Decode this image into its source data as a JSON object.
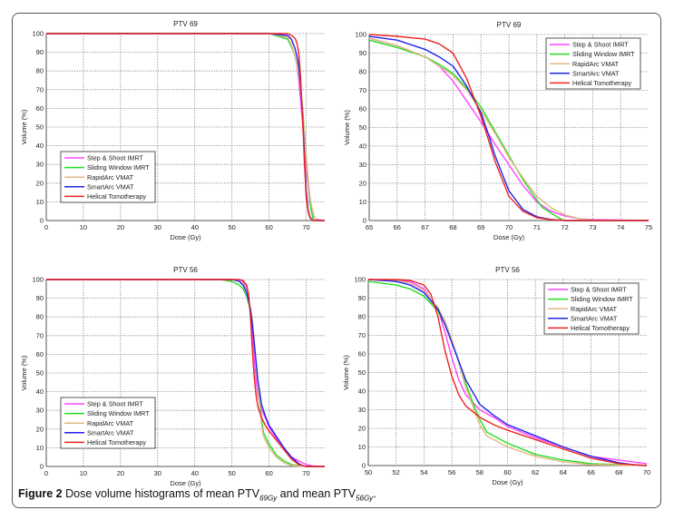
{
  "caption": {
    "label": "Figure 2",
    "text_before": " Dose volume histograms of mean PTV",
    "sub1": "69Gy",
    "text_mid": " and mean PTV",
    "sub2": "56Gy",
    "text_end": "."
  },
  "series_colors": {
    "Step & Shoot IMRT": "#ff44ff",
    "Sliding Window IMRT": "#22dd22",
    "RapidArc VMAT": "#e2b884",
    "SmartArc VMAT": "#2222ee",
    "Helical Tomotherapy": "#ee2222"
  },
  "chart_data": [
    {
      "type": "line",
      "title": "PTV 69",
      "xlabel": "Dose (Gy)",
      "ylabel": "Volume (%)",
      "xlim": [
        0,
        75
      ],
      "ylim": [
        0,
        100
      ],
      "xticks": [
        0,
        10,
        20,
        30,
        40,
        50,
        60,
        70
      ],
      "yticks": [
        0,
        10,
        20,
        30,
        40,
        50,
        60,
        70,
        80,
        90,
        100
      ],
      "grid": true,
      "legend": "bottom-left",
      "series": [
        {
          "name": "Step & Shoot IMRT",
          "x": [
            0,
            60,
            65,
            66,
            67,
            67.5,
            68,
            68.5,
            69,
            69.5,
            70,
            70.5,
            71,
            71.5,
            72,
            72.5,
            73,
            75
          ],
          "y": [
            100,
            100,
            98,
            94,
            88,
            83,
            75,
            64,
            53,
            41,
            30,
            19,
            10,
            5,
            2.5,
            1,
            0.5,
            0
          ]
        },
        {
          "name": "Sliding Window IMRT",
          "x": [
            0,
            60,
            65,
            66,
            67,
            67.5,
            68,
            68.5,
            69,
            69.5,
            70,
            70.5,
            71,
            71.2,
            71.5,
            71.9,
            72,
            75
          ],
          "y": [
            100,
            100,
            97,
            93,
            88,
            84,
            79,
            71,
            61,
            48,
            35,
            22,
            11,
            7,
            4,
            0.5,
            0,
            0
          ]
        },
        {
          "name": "RapidArc VMAT",
          "x": [
            0,
            60,
            65,
            66,
            67,
            68,
            68.5,
            69,
            69.5,
            70,
            70.5,
            71,
            71.5,
            72,
            72.5,
            73,
            75
          ],
          "y": [
            100,
            100,
            98,
            94,
            88,
            78,
            70,
            59,
            47,
            34,
            23,
            13,
            7,
            3,
            1,
            0.3,
            0
          ]
        },
        {
          "name": "SmartArc VMAT",
          "x": [
            0,
            60,
            65,
            66,
            67,
            67.5,
            68,
            68.5,
            69,
            69.3,
            69.5,
            70,
            70.5,
            71,
            71.5,
            72,
            75
          ],
          "y": [
            100,
            100,
            99,
            97,
            92,
            88,
            83,
            72,
            58,
            45,
            35,
            16,
            6,
            2,
            0.6,
            0,
            0
          ]
        },
        {
          "name": "Helical Tomotherapy",
          "x": [
            0,
            60,
            65,
            66,
            67,
            67.5,
            68,
            68.5,
            69,
            69.3,
            69.5,
            70,
            70.5,
            71,
            71.5,
            72,
            75
          ],
          "y": [
            100,
            100,
            100,
            99,
            97.5,
            95,
            90,
            76,
            56,
            42,
            32,
            13,
            5,
            1.5,
            0.5,
            0,
            0
          ]
        }
      ]
    },
    {
      "type": "line",
      "title": "PTV 69",
      "xlabel": "Dose (Gy)",
      "ylabel": "Volume (%)",
      "xlim": [
        65,
        75
      ],
      "ylim": [
        0,
        100
      ],
      "xticks": [
        65,
        66,
        67,
        68,
        69,
        70,
        71,
        72,
        73,
        74,
        75
      ],
      "yticks": [
        0,
        10,
        20,
        30,
        40,
        50,
        60,
        70,
        80,
        90,
        100
      ],
      "grid": true,
      "legend": "top-right",
      "series": [
        {
          "name": "Step & Shoot IMRT",
          "x": [
            65,
            66,
            67,
            67.5,
            68,
            68.5,
            69,
            69.5,
            70,
            70.5,
            71,
            71.5,
            72,
            72.5,
            73,
            75
          ],
          "y": [
            98,
            94,
            88,
            83,
            75,
            64,
            53,
            41,
            30,
            19,
            10,
            5,
            2.5,
            1,
            0.5,
            0
          ]
        },
        {
          "name": "Sliding Window IMRT",
          "x": [
            65,
            66,
            67,
            67.5,
            68,
            68.5,
            69,
            69.5,
            70,
            70.5,
            71,
            71.2,
            71.5,
            71.9,
            72,
            75
          ],
          "y": [
            97,
            93,
            88,
            84,
            79,
            71,
            61,
            48,
            35,
            22,
            11,
            7,
            4,
            0.5,
            0,
            0
          ]
        },
        {
          "name": "RapidArc VMAT",
          "x": [
            65,
            66,
            67,
            68,
            68.5,
            69,
            69.5,
            70,
            70.5,
            71,
            71.5,
            72,
            72.5,
            73,
            75
          ],
          "y": [
            98,
            94,
            88,
            78,
            70,
            59,
            47,
            34,
            23,
            13,
            7,
            3,
            1,
            0.3,
            0
          ]
        },
        {
          "name": "SmartArc VMAT",
          "x": [
            65,
            66,
            67,
            67.5,
            68,
            68.5,
            69,
            69.3,
            69.5,
            70,
            70.5,
            71,
            71.5,
            72,
            75
          ],
          "y": [
            99,
            97,
            92,
            88,
            83,
            72,
            58,
            45,
            35,
            16,
            6,
            2,
            0.6,
            0,
            0
          ]
        },
        {
          "name": "Helical Tomotherapy",
          "x": [
            65,
            66,
            67,
            67.5,
            68,
            68.5,
            69,
            69.3,
            69.5,
            70,
            70.5,
            71,
            71.5,
            72,
            75
          ],
          "y": [
            100,
            99,
            97.5,
            95,
            90,
            76,
            56,
            42,
            32,
            13,
            5,
            1.5,
            0.5,
            0,
            0
          ]
        }
      ]
    },
    {
      "type": "line",
      "title": "PTV 56",
      "xlabel": "Dose (Gy)",
      "ylabel": "Volume (%)",
      "xlim": [
        0,
        75
      ],
      "ylim": [
        0,
        100
      ],
      "xticks": [
        0,
        10,
        20,
        30,
        40,
        50,
        60,
        70
      ],
      "yticks": [
        0,
        10,
        20,
        30,
        40,
        50,
        60,
        70,
        80,
        90,
        100
      ],
      "grid": true,
      "legend": "bottom-left",
      "series": [
        {
          "name": "Step & Shoot IMRT",
          "x": [
            0,
            47,
            50,
            52,
            53,
            54,
            55,
            55.5,
            56,
            56.5,
            57,
            58,
            59,
            60,
            62,
            64,
            66,
            68,
            70,
            72,
            75
          ],
          "y": [
            100,
            100,
            100,
            99.5,
            99,
            95,
            84,
            72,
            58,
            46,
            38,
            30,
            26,
            21,
            15,
            10,
            5,
            3,
            1,
            0.3,
            0
          ]
        },
        {
          "name": "Sliding Window IMRT",
          "x": [
            0,
            47,
            50,
            52,
            53,
            54,
            55,
            55.5,
            56,
            56.5,
            57,
            57.5,
            58,
            58.5,
            60,
            62,
            64,
            66,
            68,
            70,
            75
          ],
          "y": [
            100,
            100,
            99,
            97,
            95,
            91,
            83,
            76,
            67,
            56,
            44,
            34,
            25,
            18,
            12,
            6,
            3,
            1,
            0.5,
            0,
            0
          ]
        },
        {
          "name": "RapidArc VMAT",
          "x": [
            0,
            47,
            50,
            52,
            53,
            54,
            55,
            55.5,
            56,
            56.5,
            57,
            57.5,
            58,
            58.5,
            60,
            62,
            64,
            66,
            70,
            75
          ],
          "y": [
            100,
            100,
            100,
            99.5,
            98,
            94,
            85,
            78,
            68,
            55,
            42,
            32,
            22,
            16,
            10,
            5,
            2,
            0.5,
            0,
            0
          ]
        },
        {
          "name": "SmartArc VMAT",
          "x": [
            0,
            47,
            50,
            52,
            53,
            54,
            55,
            55.5,
            56,
            56.5,
            57,
            58,
            59,
            60,
            62,
            64,
            66,
            68,
            69,
            70,
            75
          ],
          "y": [
            100,
            100,
            100,
            99,
            97,
            93,
            84,
            76,
            66,
            56,
            46,
            33,
            27,
            22,
            16,
            10,
            5,
            1.5,
            0.5,
            0,
            0
          ]
        },
        {
          "name": "Helical Tomotherapy",
          "x": [
            0,
            47,
            50,
            52,
            53,
            54,
            54.5,
            55,
            55.5,
            56,
            56.5,
            57,
            58,
            59,
            60,
            62,
            64,
            66,
            68,
            70,
            75
          ],
          "y": [
            100,
            100,
            100,
            100,
            99.5,
            97,
            92,
            80,
            62,
            48,
            38,
            32,
            26,
            22,
            19,
            14,
            9,
            4,
            1,
            0,
            0
          ]
        }
      ]
    },
    {
      "type": "line",
      "title": "PTV 56",
      "xlabel": "Dose (Gy)",
      "ylabel": "Volume (%)",
      "xlim": [
        50,
        70
      ],
      "ylim": [
        0,
        100
      ],
      "xticks": [
        50,
        52,
        54,
        56,
        58,
        60,
        62,
        64,
        66,
        68,
        70
      ],
      "yticks": [
        0,
        10,
        20,
        30,
        40,
        50,
        60,
        70,
        80,
        90,
        100
      ],
      "grid": true,
      "legend": "top-right",
      "series": [
        {
          "name": "Step & Shoot IMRT",
          "x": [
            50,
            52,
            53,
            54,
            55,
            55.5,
            56,
            56.5,
            57,
            58,
            59,
            60,
            62,
            64,
            66,
            68,
            70
          ],
          "y": [
            100,
            99.5,
            99,
            95,
            84,
            72,
            58,
            46,
            38,
            30,
            26,
            21,
            15,
            10,
            5,
            3,
            1
          ]
        },
        {
          "name": "Sliding Window IMRT",
          "x": [
            50,
            52,
            53,
            54,
            55,
            55.5,
            56,
            56.5,
            57,
            57.5,
            58,
            58.5,
            60,
            62,
            64,
            66,
            68,
            70
          ],
          "y": [
            99,
            97,
            95,
            91,
            83,
            76,
            67,
            56,
            44,
            34,
            25,
            18,
            12,
            6,
            3,
            1,
            0.5,
            0
          ]
        },
        {
          "name": "RapidArc VMAT",
          "x": [
            50,
            52,
            53,
            54,
            55,
            55.5,
            56,
            56.5,
            57,
            57.5,
            58,
            58.5,
            60,
            62,
            64,
            66,
            70
          ],
          "y": [
            100,
            99.5,
            98,
            94,
            85,
            78,
            68,
            55,
            42,
            32,
            22,
            16,
            10,
            5,
            2,
            0.5,
            0
          ]
        },
        {
          "name": "SmartArc VMAT",
          "x": [
            50,
            52,
            53,
            54,
            55,
            55.5,
            56,
            56.5,
            57,
            58,
            59,
            60,
            62,
            64,
            66,
            68,
            69,
            70
          ],
          "y": [
            100,
            99,
            97,
            93,
            84,
            76,
            66,
            56,
            46,
            33,
            27,
            22,
            16,
            10,
            5,
            1.5,
            0.5,
            0
          ]
        },
        {
          "name": "Helical Tomotherapy",
          "x": [
            50,
            52,
            53,
            54,
            54.5,
            55,
            55.5,
            56,
            56.5,
            57,
            58,
            59,
            60,
            62,
            64,
            66,
            68,
            70
          ],
          "y": [
            100,
            100,
            99.5,
            97,
            92,
            80,
            62,
            48,
            38,
            32,
            26,
            22,
            19,
            14,
            9,
            4,
            1,
            0
          ]
        }
      ]
    }
  ]
}
